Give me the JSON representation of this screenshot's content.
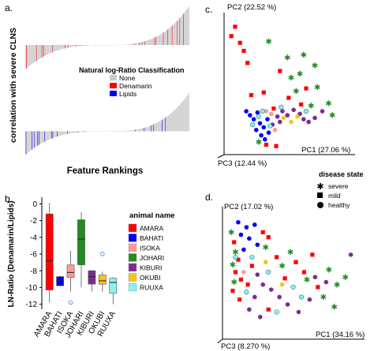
{
  "panel_letters": {
    "a": "a.",
    "b": "b.",
    "c": "c.",
    "d": "d."
  },
  "chart_data": [
    {
      "panel": "a",
      "type": "bar",
      "ylabel": "correlation with severe CLNS",
      "xlabel": "Feature Rankings",
      "legend": {
        "title": "Natural log-Ratio Classification",
        "entries": [
          {
            "name": "None",
            "color": "#cccccc"
          },
          {
            "name": "Denamarin",
            "color": "#ff0000"
          },
          {
            "name": "Lipids",
            "color": "#0000ff"
          }
        ]
      },
      "subplots": [
        {
          "name": "top",
          "n_features": 300,
          "range": [
            -0.6,
            0.95
          ]
        },
        {
          "name": "bottom",
          "n_features": 300,
          "range": [
            -0.55,
            0.9
          ]
        }
      ]
    },
    {
      "panel": "b",
      "type": "boxplot",
      "ylabel": "LN-Ratio (Denamarin/Lipids)",
      "ylim": [
        -12.6,
        0.8
      ],
      "yticks": [
        0,
        -2,
        -4,
        -6,
        -8,
        -10,
        -12
      ],
      "legend_title": "animal name",
      "categories": [
        "AMARA",
        "BAHATI",
        "ISOKA",
        "JOHARI",
        "KIBURI",
        "OKUBI",
        "RUUXA"
      ],
      "series": [
        {
          "name": "AMARA",
          "color": "#ff0000",
          "whisker_low": -11.8,
          "q1": -10.3,
          "median": -6.8,
          "q3": -1.2,
          "whisker_high": 0.1,
          "outliers": []
        },
        {
          "name": "BAHATI",
          "color": "#0000ff",
          "whisker_low": -9.8,
          "q1": -9.8,
          "median": -9.2,
          "q3": -8.7,
          "whisker_high": -8.6,
          "outliers": []
        },
        {
          "name": "ISOKA",
          "color": "#ff9999",
          "whisker_low": -10.5,
          "q1": -8.8,
          "median": -8.2,
          "q3": -7.3,
          "whisker_high": -5.6,
          "outliers": [
            -11.8
          ]
        },
        {
          "name": "JOHARI",
          "color": "#228b22",
          "whisker_low": -10.0,
          "q1": -7.3,
          "median": -4.2,
          "q3": -1.9,
          "whisker_high": -1.0,
          "outliers": []
        },
        {
          "name": "KIBURI",
          "color": "#7b2d8e",
          "whisker_low": -10.5,
          "q1": -9.6,
          "median": -8.7,
          "q3": -8.0,
          "whisker_high": -7.9,
          "outliers": []
        },
        {
          "name": "OKUBI",
          "color": "#f5c518",
          "whisker_low": -10.5,
          "q1": -9.6,
          "median": -9.2,
          "q3": -8.5,
          "whisker_high": -8.1,
          "outliers": [
            -6.0
          ]
        },
        {
          "name": "RUUXA",
          "color": "#8ef0f0",
          "whisker_low": -12.0,
          "q1": -10.7,
          "median": -9.4,
          "q3": -8.9,
          "whisker_high": -8.8,
          "outliers": []
        }
      ]
    },
    {
      "panel": "c",
      "type": "scatter",
      "axis_labels": {
        "pc1": "PC1 (27.06 %)",
        "pc2": "PC2 (22.52 %)",
        "pc3": "PC3 (12.44 %)"
      },
      "points": [
        {
          "x": 0.05,
          "y": 0.93,
          "status": "mild",
          "animal": "AMARA"
        },
        {
          "x": 0.02,
          "y": 0.86,
          "status": "mild",
          "animal": "AMARA"
        },
        {
          "x": 0.09,
          "y": 0.81,
          "status": "mild",
          "animal": "AMARA"
        },
        {
          "x": 0.12,
          "y": 0.75,
          "status": "mild",
          "animal": "AMARA"
        },
        {
          "x": 0.15,
          "y": 0.66,
          "status": "mild",
          "animal": "AMARA"
        },
        {
          "x": 0.32,
          "y": 0.82,
          "status": "severe",
          "animal": "JOHARI"
        },
        {
          "x": 0.47,
          "y": 0.7,
          "status": "severe",
          "animal": "JOHARI"
        },
        {
          "x": 0.6,
          "y": 0.72,
          "status": "severe",
          "animal": "JOHARI"
        },
        {
          "x": 0.69,
          "y": 0.64,
          "status": "severe",
          "animal": "JOHARI"
        },
        {
          "x": 0.57,
          "y": 0.58,
          "status": "severe",
          "animal": "JOHARI"
        },
        {
          "x": 0.41,
          "y": 0.6,
          "status": "mild",
          "animal": "AMARA"
        },
        {
          "x": 0.5,
          "y": 0.55,
          "status": "severe",
          "animal": "JOHARI"
        },
        {
          "x": 0.71,
          "y": 0.48,
          "status": "severe",
          "animal": "JOHARI"
        },
        {
          "x": 0.54,
          "y": 0.45,
          "status": "severe",
          "animal": "JOHARI"
        },
        {
          "x": 0.62,
          "y": 0.47,
          "status": "mild",
          "animal": "AMARA"
        },
        {
          "x": 0.48,
          "y": 0.4,
          "status": "mild",
          "animal": "AMARA"
        },
        {
          "x": 0.58,
          "y": 0.35,
          "status": "mild",
          "animal": "AMARA"
        },
        {
          "x": 0.66,
          "y": 0.34,
          "status": "severe",
          "animal": "JOHARI"
        },
        {
          "x": 0.75,
          "y": 0.3,
          "status": "healthy",
          "animal": "KIBURI"
        },
        {
          "x": 0.8,
          "y": 0.36,
          "status": "severe",
          "animal": "JOHARI"
        },
        {
          "x": 0.83,
          "y": 0.27,
          "status": "severe",
          "animal": "JOHARI"
        },
        {
          "x": 0.18,
          "y": 0.42,
          "status": "mild",
          "animal": "AMARA"
        },
        {
          "x": 0.28,
          "y": 0.44,
          "status": "mild",
          "animal": "AMARA"
        },
        {
          "x": 0.36,
          "y": 0.32,
          "status": "mild",
          "animal": "AMARA"
        },
        {
          "x": 0.14,
          "y": 0.3,
          "status": "healthy",
          "animal": "BAHATI"
        },
        {
          "x": 0.17,
          "y": 0.27,
          "status": "healthy",
          "animal": "BAHATI"
        },
        {
          "x": 0.2,
          "y": 0.24,
          "status": "healthy",
          "animal": "BAHATI"
        },
        {
          "x": 0.23,
          "y": 0.29,
          "status": "healthy",
          "animal": "BAHATI"
        },
        {
          "x": 0.25,
          "y": 0.21,
          "status": "healthy",
          "animal": "BAHATI"
        },
        {
          "x": 0.28,
          "y": 0.18,
          "status": "healthy",
          "animal": "BAHATI"
        },
        {
          "x": 0.31,
          "y": 0.24,
          "status": "healthy",
          "animal": "BAHATI"
        },
        {
          "x": 0.22,
          "y": 0.16,
          "status": "healthy",
          "animal": "BAHATI"
        },
        {
          "x": 0.26,
          "y": 0.12,
          "status": "healthy",
          "animal": "BAHATI"
        },
        {
          "x": 0.29,
          "y": 0.09,
          "status": "healthy",
          "animal": "BAHATI"
        },
        {
          "x": 0.32,
          "y": 0.14,
          "status": "healthy",
          "animal": "BAHATI"
        },
        {
          "x": 0.35,
          "y": 0.2,
          "status": "healthy",
          "animal": "KIBURI"
        },
        {
          "x": 0.39,
          "y": 0.26,
          "status": "healthy",
          "animal": "KIBURI"
        },
        {
          "x": 0.43,
          "y": 0.3,
          "status": "healthy",
          "animal": "KIBURI"
        },
        {
          "x": 0.47,
          "y": 0.27,
          "status": "healthy",
          "animal": "KIBURI"
        },
        {
          "x": 0.52,
          "y": 0.31,
          "status": "healthy",
          "animal": "KIBURI"
        },
        {
          "x": 0.57,
          "y": 0.28,
          "status": "healthy",
          "animal": "KIBURI"
        },
        {
          "x": 0.6,
          "y": 0.24,
          "status": "healthy",
          "animal": "KIBURI"
        },
        {
          "x": 0.64,
          "y": 0.22,
          "status": "healthy",
          "animal": "KIBURI"
        },
        {
          "x": 0.69,
          "y": 0.25,
          "status": "healthy",
          "animal": "KIBURI"
        },
        {
          "x": 0.41,
          "y": 0.22,
          "status": "healthy",
          "animal": "KIBURI"
        },
        {
          "x": 0.34,
          "y": 0.28,
          "status": "healthy",
          "animal": "ISOKA"
        },
        {
          "x": 0.3,
          "y": 0.3,
          "status": "healthy",
          "animal": "ISOKA"
        },
        {
          "x": 0.37,
          "y": 0.16,
          "status": "healthy",
          "animal": "ISOKA"
        },
        {
          "x": 0.44,
          "y": 0.25,
          "status": "healthy",
          "animal": "OKUBI"
        },
        {
          "x": 0.5,
          "y": 0.22,
          "status": "healthy",
          "animal": "OKUBI"
        },
        {
          "x": 0.55,
          "y": 0.26,
          "status": "healthy",
          "animal": "OKUBI"
        },
        {
          "x": 0.19,
          "y": 0.2,
          "status": "healthy",
          "animal": "RUUXA"
        },
        {
          "x": 0.24,
          "y": 0.26,
          "status": "healthy",
          "animal": "RUUXA"
        },
        {
          "x": 0.27,
          "y": 0.3,
          "status": "healthy",
          "animal": "RUUXA"
        },
        {
          "x": 0.33,
          "y": 0.19,
          "status": "healthy",
          "animal": "RUUXA"
        },
        {
          "x": 0.42,
          "y": 0.33,
          "status": "healthy",
          "animal": "RUUXA"
        },
        {
          "x": 0.62,
          "y": 0.3,
          "status": "healthy",
          "animal": "RUUXA"
        },
        {
          "x": 0.3,
          "y": 0.05,
          "status": "mild",
          "animal": "AMARA"
        },
        {
          "x": 0.38,
          "y": 0.04,
          "status": "mild",
          "animal": "AMARA"
        },
        {
          "x": 0.24,
          "y": 0.07,
          "status": "severe",
          "animal": "JOHARI"
        }
      ]
    },
    {
      "panel": "d",
      "type": "scatter",
      "axis_labels": {
        "pc1": "PC1 (34.16 %)",
        "pc2": "PC2 (17.02 %)",
        "pc3": "PC3 (8.270 %)"
      },
      "points": [
        {
          "x": 0.08,
          "y": 0.9,
          "status": "healthy",
          "animal": "BAHATI"
        },
        {
          "x": 0.14,
          "y": 0.86,
          "status": "healthy",
          "animal": "BAHATI"
        },
        {
          "x": 0.2,
          "y": 0.88,
          "status": "healthy",
          "animal": "BAHATI"
        },
        {
          "x": 0.1,
          "y": 0.8,
          "status": "healthy",
          "animal": "BAHATI"
        },
        {
          "x": 0.16,
          "y": 0.77,
          "status": "healthy",
          "animal": "BAHATI"
        },
        {
          "x": 0.22,
          "y": 0.72,
          "status": "healthy",
          "animal": "BAHATI"
        },
        {
          "x": 0.12,
          "y": 0.68,
          "status": "healthy",
          "animal": "BAHATI"
        },
        {
          "x": 0.26,
          "y": 0.82,
          "status": "mild",
          "animal": "AMARA"
        },
        {
          "x": 0.3,
          "y": 0.78,
          "status": "mild",
          "animal": "AMARA"
        },
        {
          "x": 0.05,
          "y": 0.74,
          "status": "mild",
          "animal": "AMARA"
        },
        {
          "x": 0.08,
          "y": 0.6,
          "status": "mild",
          "animal": "AMARA"
        },
        {
          "x": 0.06,
          "y": 0.5,
          "status": "mild",
          "animal": "AMARA"
        },
        {
          "x": 0.1,
          "y": 0.44,
          "status": "mild",
          "animal": "AMARA"
        },
        {
          "x": 0.04,
          "y": 0.35,
          "status": "mild",
          "animal": "AMARA"
        },
        {
          "x": 0.15,
          "y": 0.4,
          "status": "mild",
          "animal": "AMARA"
        },
        {
          "x": 0.09,
          "y": 0.28,
          "status": "mild",
          "animal": "AMARA"
        },
        {
          "x": 0.18,
          "y": 0.55,
          "status": "mild",
          "animal": "AMARA"
        },
        {
          "x": 0.36,
          "y": 0.62,
          "status": "mild",
          "animal": "AMARA"
        },
        {
          "x": 0.5,
          "y": 0.58,
          "status": "mild",
          "animal": "AMARA"
        },
        {
          "x": 0.56,
          "y": 0.5,
          "status": "mild",
          "animal": "AMARA"
        },
        {
          "x": 0.62,
          "y": 0.64,
          "status": "mild",
          "animal": "AMARA"
        },
        {
          "x": 0.42,
          "y": 0.45,
          "status": "mild",
          "animal": "AMARA"
        },
        {
          "x": 0.66,
          "y": 0.38,
          "status": "mild",
          "animal": "AMARA"
        },
        {
          "x": 0.3,
          "y": 0.2,
          "status": "mild",
          "animal": "AMARA"
        },
        {
          "x": 0.03,
          "y": 0.82,
          "status": "severe",
          "animal": "JOHARI"
        },
        {
          "x": 0.06,
          "y": 0.66,
          "status": "severe",
          "animal": "JOHARI"
        },
        {
          "x": 0.04,
          "y": 0.56,
          "status": "severe",
          "animal": "JOHARI"
        },
        {
          "x": 0.05,
          "y": 0.42,
          "status": "severe",
          "animal": "JOHARI"
        },
        {
          "x": 0.28,
          "y": 0.7,
          "status": "severe",
          "animal": "JOHARI"
        },
        {
          "x": 0.4,
          "y": 0.55,
          "status": "severe",
          "animal": "JOHARI"
        },
        {
          "x": 0.46,
          "y": 0.66,
          "status": "severe",
          "animal": "JOHARI"
        },
        {
          "x": 0.58,
          "y": 0.44,
          "status": "severe",
          "animal": "JOHARI"
        },
        {
          "x": 0.7,
          "y": 0.3,
          "status": "severe",
          "animal": "JOHARI"
        },
        {
          "x": 0.74,
          "y": 0.52,
          "status": "severe",
          "animal": "JOHARI"
        },
        {
          "x": 0.8,
          "y": 0.4,
          "status": "severe",
          "animal": "JOHARI"
        },
        {
          "x": 0.86,
          "y": 0.46,
          "status": "severe",
          "animal": "JOHARI"
        },
        {
          "x": 0.78,
          "y": 0.22,
          "status": "severe",
          "animal": "JOHARI"
        },
        {
          "x": 0.22,
          "y": 0.48,
          "status": "healthy",
          "animal": "KIBURI"
        },
        {
          "x": 0.26,
          "y": 0.4,
          "status": "healthy",
          "animal": "KIBURI"
        },
        {
          "x": 0.32,
          "y": 0.36,
          "status": "healthy",
          "animal": "KIBURI"
        },
        {
          "x": 0.38,
          "y": 0.3,
          "status": "healthy",
          "animal": "KIBURI"
        },
        {
          "x": 0.2,
          "y": 0.3,
          "status": "healthy",
          "animal": "KIBURI"
        },
        {
          "x": 0.16,
          "y": 0.2,
          "status": "healthy",
          "animal": "KIBURI"
        },
        {
          "x": 0.24,
          "y": 0.14,
          "status": "healthy",
          "animal": "KIBURI"
        },
        {
          "x": 0.44,
          "y": 0.24,
          "status": "healthy",
          "animal": "KIBURI"
        },
        {
          "x": 0.52,
          "y": 0.18,
          "status": "healthy",
          "animal": "KIBURI"
        },
        {
          "x": 0.6,
          "y": 0.28,
          "status": "healthy",
          "animal": "KIBURI"
        },
        {
          "x": 0.64,
          "y": 0.46,
          "status": "healthy",
          "animal": "KIBURI"
        },
        {
          "x": 0.72,
          "y": 0.42,
          "status": "healthy",
          "animal": "KIBURI"
        },
        {
          "x": 0.9,
          "y": 0.64,
          "status": "healthy",
          "animal": "KIBURI"
        },
        {
          "x": 0.12,
          "y": 0.5,
          "status": "healthy",
          "animal": "ISOKA"
        },
        {
          "x": 0.18,
          "y": 0.62,
          "status": "healthy",
          "animal": "RUUXA"
        },
        {
          "x": 0.06,
          "y": 0.62,
          "status": "healthy",
          "animal": "RUUXA"
        },
        {
          "x": 0.3,
          "y": 0.5,
          "status": "healthy",
          "animal": "RUUXA"
        },
        {
          "x": 0.14,
          "y": 0.34,
          "status": "healthy",
          "animal": "RUUXA"
        },
        {
          "x": 0.36,
          "y": 0.18,
          "status": "healthy",
          "animal": "RUUXA"
        },
        {
          "x": 0.48,
          "y": 0.38,
          "status": "healthy",
          "animal": "RUUXA"
        },
        {
          "x": 0.54,
          "y": 0.3,
          "status": "healthy",
          "animal": "RUUXA"
        },
        {
          "x": 0.28,
          "y": 0.58,
          "status": "healthy",
          "animal": "OKUBI"
        },
        {
          "x": 0.4,
          "y": 0.4,
          "status": "healthy",
          "animal": "OKUBI"
        }
      ]
    }
  ],
  "pca_legend": {
    "title": "disease state",
    "entries": [
      {
        "name": "severe",
        "symbol": "star"
      },
      {
        "name": "mild",
        "symbol": "square"
      },
      {
        "name": "healthy",
        "symbol": "circle"
      }
    ]
  }
}
